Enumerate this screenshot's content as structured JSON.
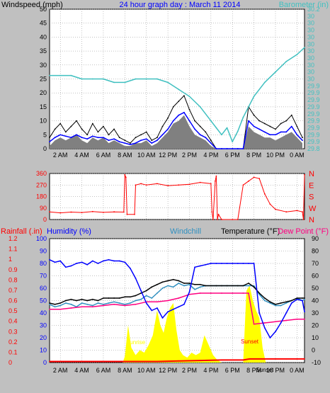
{
  "colors": {
    "background": "#c0c0c0",
    "plot": "#ffffff",
    "grid": "#888888",
    "axis_text": "#000000",
    "windspeed": "#000000",
    "gust": "#808080",
    "wind_avg": "#0000ff",
    "barometer": "#40c0c0",
    "direction": "#ff0000",
    "rainfall": "#ff0000",
    "humidity": "#0000ff",
    "windchill": "#3090c0",
    "temperature": "#000000",
    "dewpoint": "#ff0080",
    "solar": "#ffff00"
  },
  "x_ticks": [
    "2 AM",
    "4 AM",
    "6 AM",
    "8 AM",
    "10 AM",
    "12 PM",
    "2 PM",
    "4 PM",
    "6 PM",
    "8 PM",
    "10 PM",
    "0 AM"
  ],
  "chart_data": [
    {
      "type": "line",
      "title": "24 hour graph day : March 11 2014",
      "ylabel": "Windspeed (mph)",
      "y2label": "Barometer (in)",
      "ylim": [
        0,
        50
      ],
      "y2lim": [
        29.8,
        30.2
      ],
      "yticks": [
        "0",
        "5",
        "10",
        "15",
        "20",
        "25",
        "30",
        "35",
        "40",
        "45",
        "50"
      ],
      "y2ticks": [
        "29.8",
        "29.9",
        "29.9",
        "29.9",
        "29.9",
        "29.9",
        "29.9",
        "29.9",
        "29.9",
        "29.9",
        "30",
        "30",
        "30",
        "30",
        "30",
        "30",
        "30",
        "30",
        "30",
        "30",
        "30.2"
      ],
      "x_hours": [
        0,
        23.7
      ],
      "series": [
        {
          "name": "Windspeed",
          "axis": "left",
          "x": [
            0,
            0.5,
            1,
            1.5,
            2,
            2.5,
            3,
            3.5,
            4,
            4.5,
            5,
            5.5,
            6,
            6.5,
            7,
            7.5,
            8,
            8.5,
            9,
            9.5,
            10,
            10.5,
            11,
            11.5,
            12,
            12.5,
            13,
            13.5,
            14,
            14.5,
            15,
            15.5,
            16,
            16.5,
            17,
            17.5,
            18,
            18.5,
            19,
            19.5,
            20,
            20.5,
            21,
            21.5,
            22,
            22.5,
            23,
            23.5
          ],
          "y": [
            4,
            7,
            9,
            6,
            8,
            10,
            7,
            5,
            9,
            6,
            8,
            5,
            7,
            4,
            3,
            2,
            4,
            5,
            6,
            3,
            4,
            8,
            11,
            15,
            17,
            19,
            14,
            10,
            8,
            6,
            3,
            0,
            0,
            0,
            0,
            0,
            0,
            15,
            12,
            10,
            9,
            8,
            7,
            9,
            10,
            12,
            8,
            4
          ]
        },
        {
          "name": "Gust",
          "axis": "left",
          "x": [
            0,
            0.5,
            1,
            1.5,
            2,
            2.5,
            3,
            3.5,
            4,
            4.5,
            5,
            5.5,
            6,
            6.5,
            7,
            7.5,
            8,
            8.5,
            9,
            9.5,
            10,
            10.5,
            11,
            11.5,
            12,
            12.5,
            13,
            13.5,
            14,
            14.5,
            15,
            15.5,
            16,
            16.5,
            17,
            17.5,
            18,
            18.5,
            19,
            19.5,
            20,
            20.5,
            21,
            21.5,
            22,
            22.5,
            23,
            23.5
          ],
          "y": [
            1,
            3,
            4,
            3,
            4,
            5,
            3,
            2,
            4,
            3,
            4,
            2,
            3,
            2,
            1,
            1,
            2,
            2,
            3,
            1,
            2,
            4,
            6,
            9,
            10,
            12,
            8,
            5,
            4,
            3,
            1,
            0,
            0,
            0,
            0,
            0,
            0,
            8,
            6,
            5,
            4,
            4,
            3,
            4,
            5,
            6,
            4,
            2
          ]
        },
        {
          "name": "Wind Avg",
          "axis": "left",
          "x": [
            0,
            0.5,
            1,
            1.5,
            2,
            2.5,
            3,
            3.5,
            4,
            4.5,
            5,
            5.5,
            6,
            6.5,
            7,
            7.5,
            8,
            8.5,
            9,
            9.5,
            10,
            10.5,
            11,
            11.5,
            12,
            12.5,
            13,
            13.5,
            14,
            14.5,
            15,
            15.5,
            16,
            16.5,
            17,
            17.5,
            18,
            18.5,
            19,
            19.5,
            20,
            20.5,
            21,
            21.5,
            22,
            22.5,
            23,
            23.5
          ],
          "y": [
            2.5,
            4,
            5,
            4.5,
            4,
            5,
            4,
            3.5,
            4.5,
            4,
            4,
            3,
            3.5,
            2.5,
            2,
            1.5,
            2,
            3,
            3.5,
            2,
            3,
            5,
            7,
            10,
            12,
            13,
            10,
            7,
            5,
            4,
            2,
            0,
            0,
            0,
            0,
            0,
            0,
            10,
            8,
            7,
            6,
            5,
            5,
            6,
            6,
            8,
            5,
            3
          ]
        },
        {
          "name": "Barometer",
          "axis": "right",
          "x": [
            0,
            1,
            2,
            3,
            4,
            5,
            6,
            7,
            8,
            9,
            10,
            11,
            12,
            13,
            14,
            15,
            15.5,
            16,
            16.5,
            17,
            17.5,
            18,
            19,
            20,
            21,
            22,
            23,
            23.7
          ],
          "y": [
            30.01,
            30.01,
            30.01,
            30.0,
            30.0,
            30.0,
            29.99,
            29.99,
            30.0,
            30.0,
            30.0,
            29.99,
            29.97,
            29.95,
            29.92,
            29.88,
            29.86,
            29.84,
            29.86,
            29.82,
            29.85,
            29.89,
            29.95,
            29.99,
            30.02,
            30.05,
            30.07,
            30.09
          ]
        }
      ]
    },
    {
      "type": "line",
      "ylabel": "Direction",
      "ylim": [
        0,
        360
      ],
      "yticks": [
        "0",
        "90",
        "180",
        "270",
        "360"
      ],
      "compass_labels": [
        "N",
        "W",
        "S",
        "E",
        "N"
      ],
      "series": [
        {
          "name": "Wind Direction",
          "x": [
            0,
            1,
            2,
            3,
            4,
            5,
            6,
            6.9,
            7.0,
            7.1,
            7.2,
            7.9,
            8.0,
            8.5,
            9,
            10,
            11,
            12,
            13,
            14,
            15,
            15.1,
            15.2,
            15.4,
            15.5,
            15.6,
            15.7,
            16,
            17,
            17.5,
            18,
            18.5,
            19,
            19.5,
            20,
            20.5,
            21,
            22,
            23,
            23.5,
            23.6,
            23.7
          ],
          "y": [
            60,
            52,
            58,
            55,
            62,
            56,
            60,
            58,
            350,
            330,
            40,
            40,
            270,
            280,
            270,
            280,
            265,
            270,
            275,
            290,
            280,
            60,
            0,
            300,
            340,
            0,
            40,
            0,
            0,
            0,
            270,
            300,
            330,
            320,
            200,
            120,
            80,
            60,
            70,
            60,
            0,
            350
          ]
        }
      ]
    },
    {
      "type": "line",
      "y_left_labels": [
        "Rainfall (.in)",
        "Humidity (%)"
      ],
      "y_mid_label": "Windchill",
      "y_right_labels": [
        "Temperature (°F)",
        "Dew Point (°F)"
      ],
      "rain_ticks": [
        "0",
        "0.1",
        "0.2",
        "0.3",
        "0.4",
        "0.5",
        "0.6",
        "0.7",
        "0.8",
        "0.9",
        "1",
        "1.1",
        "1.2"
      ],
      "humidity_ticks": [
        "0",
        "10",
        "20",
        "30",
        "40",
        "50",
        "60",
        "70",
        "80",
        "90",
        "100"
      ],
      "temp_ticks": [
        "-10",
        "0",
        "10",
        "20",
        "30",
        "40",
        "50",
        "60",
        "70",
        "80",
        "90"
      ],
      "rain_ylim": [
        0,
        1.2
      ],
      "humidity_ylim": [
        0,
        100
      ],
      "temp_ylim": [
        -10,
        90
      ],
      "annotations": [
        "Sunrise",
        "Sunset",
        "Sunset"
      ],
      "series": [
        {
          "name": "Humidity",
          "axis": "humidity",
          "x": [
            0,
            0.5,
            1,
            1.5,
            2,
            2.5,
            3,
            3.5,
            4,
            4.5,
            5,
            5.5,
            6,
            6.5,
            7,
            7.5,
            8,
            8.5,
            9,
            9.5,
            10,
            10.5,
            11,
            11.5,
            12,
            12.5,
            13,
            13.5,
            14,
            14.5,
            15,
            15.5,
            16,
            16.5,
            17,
            17.5,
            18,
            18.5,
            19,
            19.5,
            20,
            20.5,
            21,
            21.5,
            22,
            22.5,
            23,
            23.5,
            23.7
          ],
          "y": [
            83,
            81,
            82,
            77,
            78,
            80,
            81,
            79,
            82,
            80,
            82,
            83,
            82,
            82,
            81,
            76,
            68,
            58,
            48,
            42,
            44,
            36,
            41,
            43,
            45,
            47,
            57,
            77,
            78,
            79,
            80,
            80,
            80,
            80,
            80,
            80,
            80,
            80,
            80,
            40,
            28,
            20,
            25,
            32,
            40,
            48,
            51,
            50,
            41
          ]
        },
        {
          "name": "Windchill",
          "axis": "temp",
          "x": [
            0,
            0.5,
            1,
            1.5,
            2,
            2.5,
            3,
            3.5,
            4,
            4.5,
            5,
            5.5,
            6,
            6.5,
            7,
            7.5,
            8,
            8.5,
            9,
            9.5,
            10,
            10.5,
            11,
            11.5,
            12,
            12.5,
            13,
            13.5,
            14,
            14.5,
            15,
            15.5,
            16,
            16.5,
            17,
            17.5,
            18,
            18.5,
            19,
            19.5,
            20,
            20.5,
            21,
            21.5,
            22,
            22.5,
            23,
            23.5,
            23.7
          ],
          "y": [
            37,
            35,
            36,
            38,
            37,
            35,
            38,
            37,
            36,
            38,
            37,
            38,
            39,
            38,
            37,
            38,
            40,
            41,
            44,
            42,
            46,
            50,
            52,
            51,
            54,
            52,
            53,
            49,
            51,
            52,
            52,
            52,
            52,
            52,
            52,
            52,
            52,
            52,
            52,
            45,
            40,
            38,
            36,
            36,
            38,
            40,
            42,
            40,
            41
          ]
        },
        {
          "name": "Temperature",
          "axis": "temp",
          "x": [
            0,
            0.5,
            1,
            1.5,
            2,
            2.5,
            3,
            3.5,
            4,
            4.5,
            5,
            5.5,
            6,
            6.5,
            7,
            7.5,
            8,
            8.5,
            9,
            9.5,
            10,
            10.5,
            11,
            11.5,
            12,
            12.5,
            13,
            13.5,
            14,
            14.5,
            15,
            15.5,
            16,
            16.5,
            17,
            17.5,
            18,
            18.5,
            19,
            19.5,
            20,
            20.5,
            21,
            21.5,
            22,
            22.5,
            23,
            23.5,
            23.7
          ],
          "y": [
            38,
            37,
            38,
            40,
            41,
            40,
            41,
            40,
            41,
            40,
            42,
            42,
            42,
            42,
            43,
            43,
            44,
            46,
            48,
            51,
            53,
            55,
            56,
            57,
            56,
            54,
            54,
            53,
            53,
            52,
            52,
            52,
            52,
            52,
            52,
            52,
            52,
            54,
            51,
            46,
            42,
            39,
            37,
            38,
            39,
            40,
            42,
            42,
            42
          ]
        },
        {
          "name": "Dew Point",
          "axis": "temp",
          "x": [
            0,
            1,
            2,
            3,
            4,
            5,
            6,
            7,
            8,
            9,
            10,
            11,
            12,
            13,
            14,
            15,
            16,
            17,
            18,
            18.5,
            19,
            20,
            21,
            22,
            23,
            23.7
          ],
          "y": [
            33,
            33,
            34,
            35,
            35,
            36,
            37,
            36,
            37,
            39,
            39,
            40,
            42,
            45,
            46,
            46,
            46,
            46,
            46,
            46,
            21,
            22,
            23,
            24,
            25,
            25
          ]
        },
        {
          "name": "Rainfall",
          "axis": "rain",
          "x": [
            0,
            9,
            10,
            12,
            14,
            16,
            18,
            18.6,
            20,
            22,
            23.7
          ],
          "y": [
            0.01,
            0.01,
            0.01,
            0.015,
            0.02,
            0.025,
            0.025,
            0.035,
            0.035,
            0.035,
            0.035
          ]
        },
        {
          "name": "Solar",
          "axis": "humidity",
          "type": "area",
          "x": [
            6.8,
            7.0,
            7.3,
            7.6,
            8.0,
            8.4,
            8.8,
            9.2,
            9.6,
            10.0,
            10.3,
            10.6,
            10.9,
            11.2,
            11.5,
            11.8,
            12.1,
            12.4,
            12.8,
            13.2,
            13.6,
            14.0,
            14.4,
            14.8,
            15.2,
            15.6,
            16,
            17,
            18,
            18.3,
            18.6,
            18.9,
            19.2,
            19.5,
            19.8,
            20.1
          ],
          "y": [
            0,
            5,
            30,
            12,
            6,
            10,
            8,
            14,
            22,
            42,
            30,
            24,
            36,
            44,
            48,
            26,
            10,
            6,
            4,
            8,
            6,
            8,
            22,
            14,
            6,
            2,
            0,
            0,
            0,
            58,
            62,
            50,
            42,
            36,
            12,
            0
          ]
        }
      ]
    }
  ]
}
